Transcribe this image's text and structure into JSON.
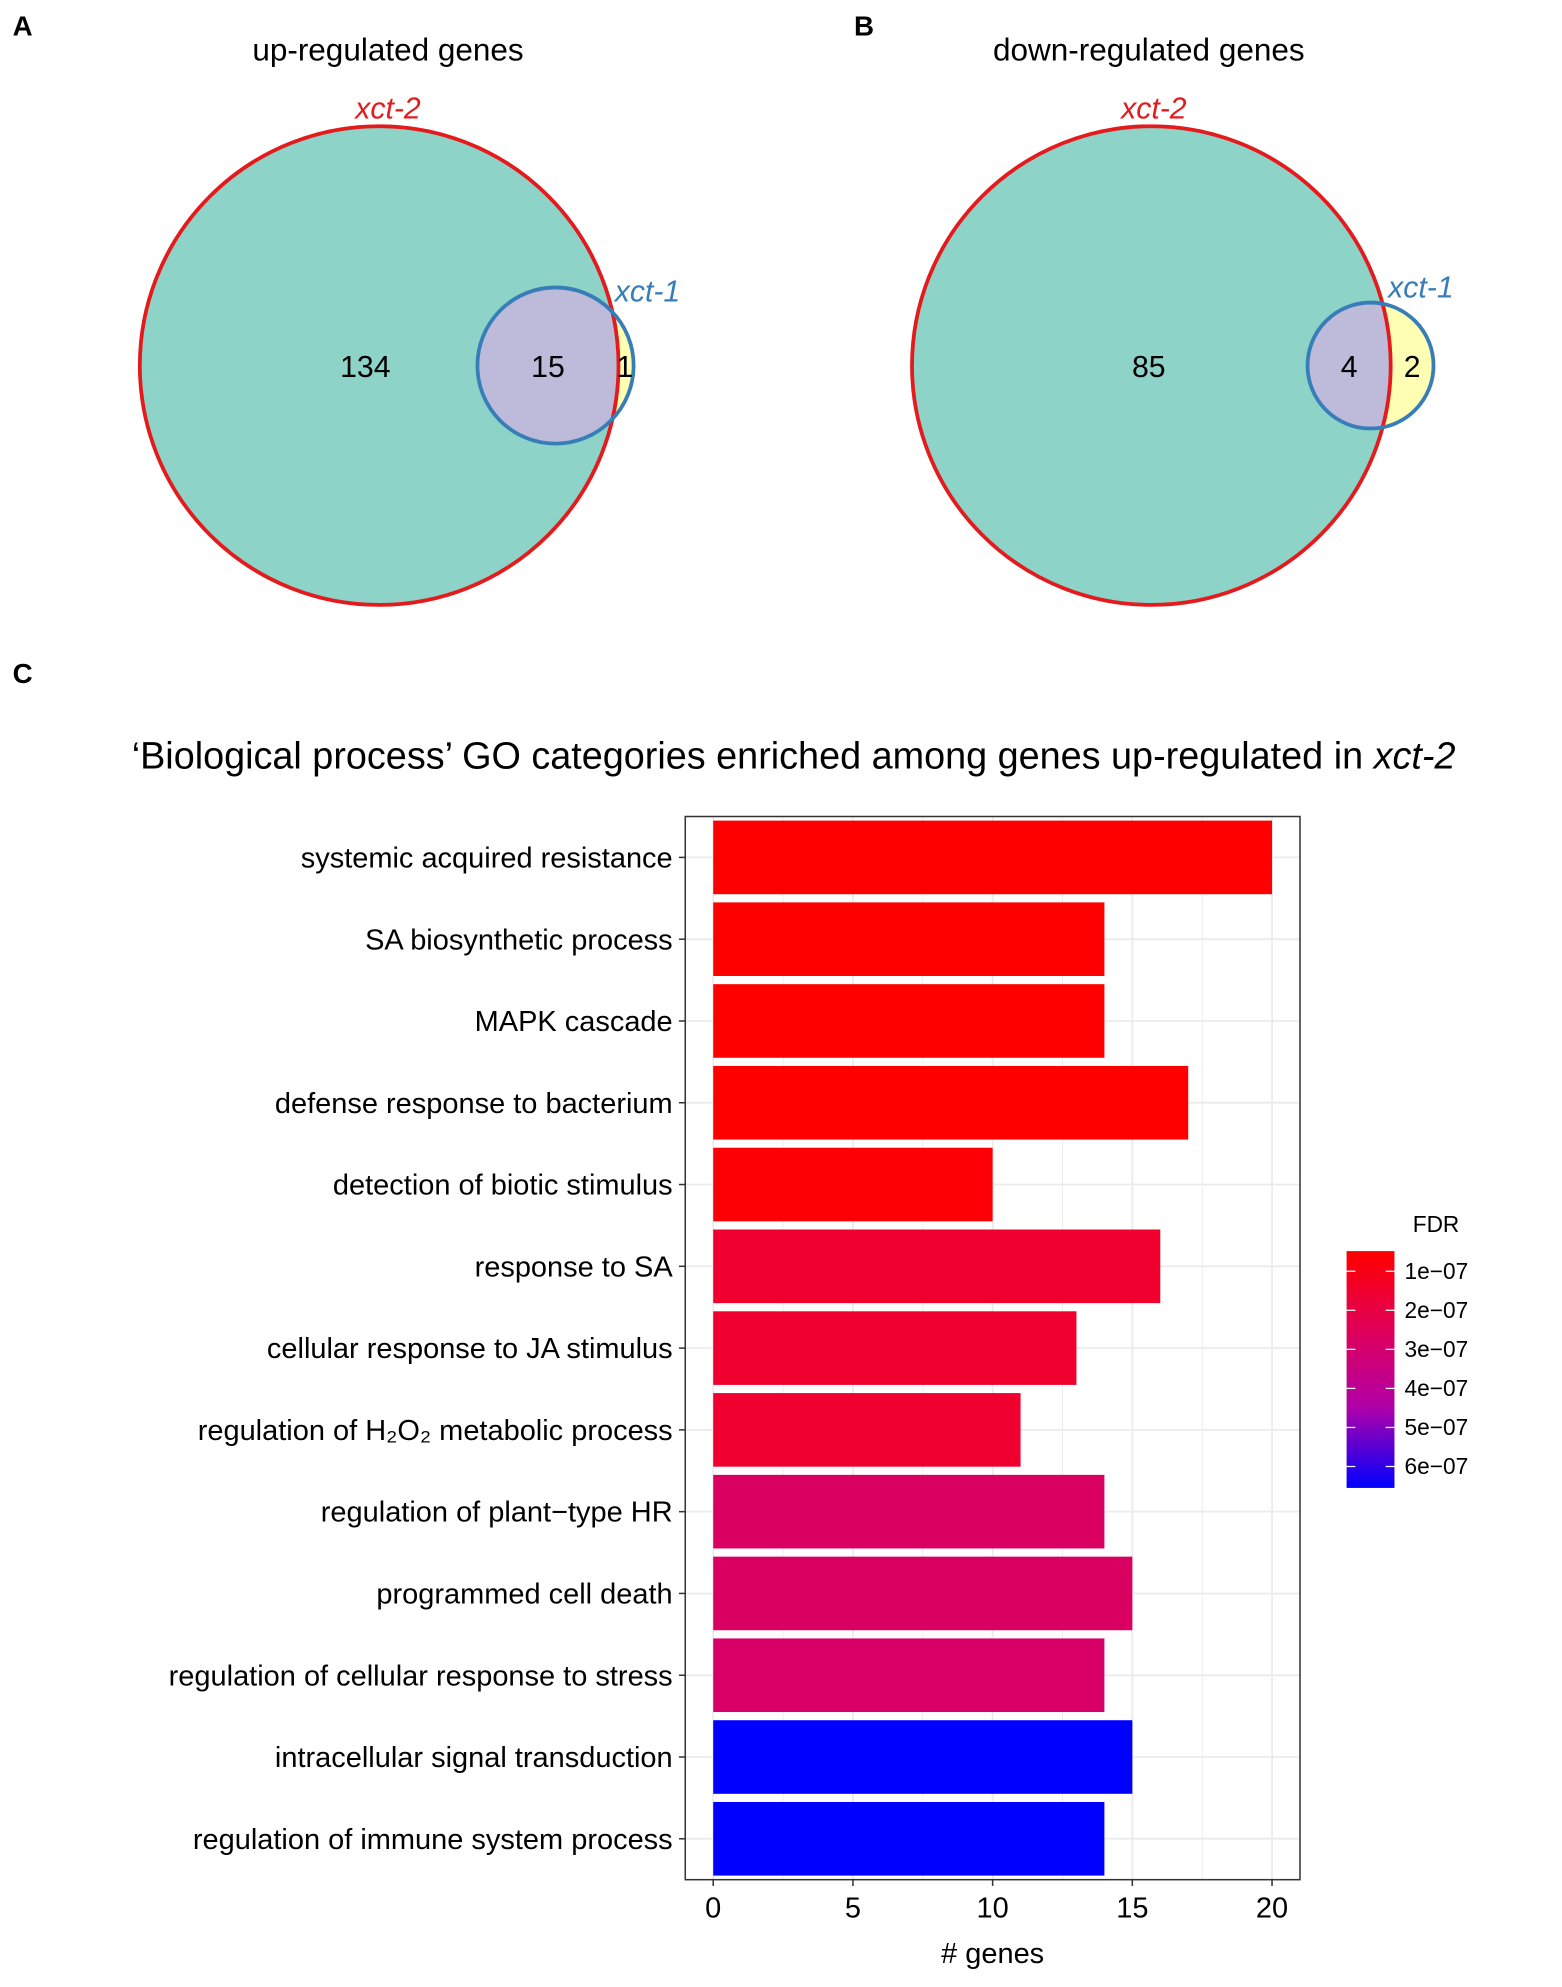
{
  "panels": {
    "a": "A",
    "b": "B",
    "c": "C"
  },
  "venn_up": {
    "title": "up-regulated genes",
    "set_big": "xct-2",
    "set_small": "xct-1",
    "only_big": "134",
    "overlap": "15",
    "only_small": "1"
  },
  "venn_down": {
    "title": "down-regulated genes",
    "set_big": "xct-2",
    "set_small": "xct-1",
    "only_big": "85",
    "overlap": "4",
    "only_small": "2"
  },
  "colors": {
    "big_fill": "#8dd3c7",
    "overlap_fill": "#bebada",
    "small_fill": "#ffffb3",
    "big_stroke": "#e41a1c",
    "small_stroke": "#377eb8"
  },
  "chart_data": {
    "type": "bar",
    "orientation": "horizontal",
    "title_prefix": "‘Biological process’ GO categories enriched among genes up-regulated in ",
    "title_italic": "xct-2",
    "xlabel": "# genes",
    "xlim": [
      -1,
      21
    ],
    "xticks": [
      0,
      5,
      10,
      15,
      20
    ],
    "grid": true,
    "categories": [
      "systemic acquired resistance",
      "SA biosynthetic process",
      "MAPK cascade",
      "defense response to bacterium",
      "detection of biotic stimulus",
      "response to SA",
      "cellular response to JA stimulus",
      "regulation of H₂O₂ metabolic process",
      "regulation of plant−type HR",
      "programmed cell death",
      "regulation of cellular response to stress",
      "intracellular signal transduction",
      "regulation of immune system process"
    ],
    "values": [
      20,
      14,
      14,
      17,
      10,
      16,
      13,
      11,
      14,
      15,
      14,
      15,
      14
    ],
    "fdr": [
      5e-08,
      5e-08,
      5e-08,
      5e-08,
      6e-08,
      1.5e-07,
      1.5e-07,
      1.5e-07,
      2.6e-07,
      2.6e-07,
      2.7e-07,
      6.2e-07,
      6.2e-07
    ],
    "legend": {
      "title": "FDR",
      "position": "right",
      "labels": [
        "1e−07",
        "2e−07",
        "3e−07",
        "4e−07",
        "5e−07",
        "6e−07"
      ],
      "range": [
        5e-08,
        6.2e-07
      ],
      "color_low": "#ff0000",
      "color_high": "#0000ff"
    }
  }
}
